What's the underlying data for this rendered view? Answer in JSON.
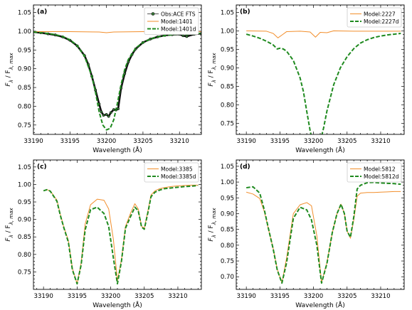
{
  "figure": {
    "xlabel": "Wavelength (Å)",
    "ylabel_main": "F",
    "ylabel_sub1": "λ",
    "ylabel_mid": " / F",
    "ylabel_sub2": "λ, max",
    "colors": {
      "model": "#f28e2b",
      "model_d": "#1f8a1f",
      "obs_fill": "#3a7d3a",
      "obs_edge": "#000000"
    }
  },
  "chart_data": [
    {
      "type": "line",
      "panel": "(a)",
      "xlim": [
        33190,
        33213
      ],
      "ylim": [
        0.725,
        1.07
      ],
      "xticks": [
        33190,
        33195,
        33200,
        33205,
        33210
      ],
      "yticks": [
        0.75,
        0.8,
        0.85,
        0.9,
        0.95,
        1.0,
        1.05
      ],
      "legend": "top-right",
      "series": [
        {
          "name": "Obs:ACE FTS",
          "style": "obs",
          "x": [
            33190,
            33191,
            33192,
            33193,
            33194,
            33195,
            33196,
            33197,
            33197.5,
            33198,
            33198.5,
            33199,
            33199.3,
            33199.6,
            33200,
            33200.3,
            33200.6,
            33201,
            33201.3,
            33201.6,
            33202,
            33202.5,
            33203,
            33203.5,
            33204,
            33205,
            33206,
            33207,
            33208,
            33209,
            33210,
            33210.5,
            33211,
            33212,
            33213
          ],
          "y": [
            0.998,
            0.996,
            0.993,
            0.99,
            0.985,
            0.976,
            0.961,
            0.935,
            0.912,
            0.88,
            0.843,
            0.806,
            0.785,
            0.776,
            0.778,
            0.773,
            0.783,
            0.791,
            0.79,
            0.793,
            0.848,
            0.887,
            0.918,
            0.938,
            0.953,
            0.97,
            0.979,
            0.985,
            0.989,
            0.991,
            0.992,
            0.988,
            0.986,
            0.992,
            0.994
          ]
        },
        {
          "name": "Model:1401",
          "style": "model",
          "x": [
            33190,
            33195,
            33199,
            33200,
            33201,
            33205,
            33210,
            33213
          ],
          "y": [
            0.999,
            0.999,
            0.998,
            0.996,
            0.998,
            0.999,
            0.999,
            0.999
          ]
        },
        {
          "name": "Model:1401d",
          "style": "modeld",
          "x": [
            33190,
            33191,
            33192,
            33193,
            33194,
            33195,
            33196,
            33197,
            33198,
            33198.5,
            33199,
            33199.5,
            33200,
            33200.5,
            33201,
            33201.5,
            33202,
            33202.5,
            33203,
            33204,
            33205,
            33206,
            33207,
            33208,
            33209,
            33210,
            33211,
            33212,
            33213
          ],
          "y": [
            0.998,
            0.996,
            0.994,
            0.991,
            0.986,
            0.977,
            0.962,
            0.933,
            0.88,
            0.837,
            0.785,
            0.75,
            0.737,
            0.741,
            0.764,
            0.808,
            0.858,
            0.898,
            0.925,
            0.955,
            0.97,
            0.979,
            0.985,
            0.988,
            0.991,
            0.993,
            0.991,
            0.993,
            0.995
          ]
        }
      ]
    },
    {
      "type": "line",
      "panel": "(b)",
      "xlim": [
        33188.5,
        33213.5
      ],
      "ylim": [
        0.72,
        1.07
      ],
      "xticks": [
        33190,
        33195,
        33200,
        33205,
        33210
      ],
      "yticks": [
        0.75,
        0.8,
        0.85,
        0.9,
        0.95,
        1.0,
        1.05
      ],
      "legend": "top-right",
      "series": [
        {
          "name": "Model:2227",
          "style": "model",
          "x": [
            33190,
            33193,
            33194,
            33194.7,
            33195.4,
            33196,
            33198,
            33199.5,
            33200.3,
            33201,
            33202,
            33203,
            33206,
            33210,
            33213
          ],
          "y": [
            1.0,
            0.999,
            0.993,
            0.981,
            0.99,
            0.998,
            0.999,
            0.997,
            0.983,
            0.996,
            0.995,
            1.0,
            0.999,
            0.999,
            0.999
          ]
        },
        {
          "name": "Model:2227d",
          "style": "modeld",
          "x": [
            33190,
            33191,
            33192,
            33193,
            33194,
            33194.6,
            33195,
            33195.5,
            33196,
            33197,
            33198,
            33198.5,
            33199,
            33199.5,
            33200,
            33200.5,
            33201,
            33201.5,
            33202,
            33203,
            33204,
            33205,
            33206,
            33207,
            33208,
            33209,
            33210,
            33211,
            33212,
            33213
          ],
          "y": [
            0.991,
            0.986,
            0.98,
            0.972,
            0.962,
            0.951,
            0.953,
            0.951,
            0.945,
            0.92,
            0.873,
            0.836,
            0.782,
            0.73,
            0.69,
            0.688,
            0.7,
            0.737,
            0.783,
            0.854,
            0.9,
            0.93,
            0.952,
            0.967,
            0.976,
            0.982,
            0.986,
            0.989,
            0.991,
            0.993
          ]
        }
      ]
    },
    {
      "type": "line",
      "panel": "(c)",
      "xlim": [
        33188.5,
        33213.5
      ],
      "ylim": [
        0.7,
        1.07
      ],
      "xticks": [
        33190,
        33195,
        33200,
        33205,
        33210
      ],
      "yticks": [
        0.75,
        0.8,
        0.85,
        0.9,
        0.95,
        1.0,
        1.05
      ],
      "legend": "top-right",
      "series": [
        {
          "name": "Model:3385",
          "style": "model",
          "x": [
            33190,
            33190.5,
            33191,
            33192,
            33192.5,
            33193,
            33193.7,
            33194.3,
            33195,
            33195.6,
            33196.2,
            33197,
            33198,
            33199,
            33199.7,
            33200.4,
            33201,
            33201.6,
            33202.2,
            33203,
            33203.6,
            33204.1,
            33204.6,
            33205,
            33205.6,
            33206,
            33206.6,
            33207.3,
            33208,
            33209,
            33210,
            33211,
            33212,
            33213
          ],
          "y": [
            0.982,
            0.985,
            0.982,
            0.955,
            0.915,
            0.88,
            0.84,
            0.76,
            0.716,
            0.775,
            0.887,
            0.942,
            0.958,
            0.955,
            0.93,
            0.843,
            0.725,
            0.785,
            0.88,
            0.92,
            0.945,
            0.93,
            0.88,
            0.875,
            0.93,
            0.97,
            0.982,
            0.988,
            0.991,
            0.994,
            0.996,
            0.997,
            0.998,
            0.998
          ]
        },
        {
          "name": "Model:3385d",
          "style": "modeld",
          "x": [
            33190,
            33190.5,
            33191,
            33192,
            33192.5,
            33193,
            33193.7,
            33194.3,
            33195,
            33195.6,
            33196.2,
            33197,
            33198,
            33199,
            33199.7,
            33200.4,
            33201,
            33201.6,
            33202.2,
            33203,
            33203.6,
            33204.1,
            33204.6,
            33205,
            33205.6,
            33206,
            33206.6,
            33207.3,
            33208,
            33209,
            33210,
            33211,
            33212,
            33213
          ],
          "y": [
            0.982,
            0.985,
            0.981,
            0.952,
            0.912,
            0.878,
            0.835,
            0.756,
            0.716,
            0.77,
            0.87,
            0.928,
            0.935,
            0.917,
            0.88,
            0.79,
            0.716,
            0.78,
            0.875,
            0.91,
            0.935,
            0.925,
            0.878,
            0.872,
            0.925,
            0.965,
            0.978,
            0.984,
            0.988,
            0.99,
            0.992,
            0.994,
            0.995,
            0.997
          ]
        }
      ]
    },
    {
      "type": "line",
      "panel": "(d)",
      "xlim": [
        33188.5,
        33213.5
      ],
      "ylim": [
        0.66,
        1.07
      ],
      "xticks": [
        33190,
        33195,
        33200,
        33205,
        33210
      ],
      "yticks": [
        0.7,
        0.75,
        0.8,
        0.85,
        0.9,
        0.95,
        1.0,
        1.05
      ],
      "legend": "top-right",
      "series": [
        {
          "name": "Model:5812",
          "style": "model",
          "x": [
            33190,
            33191,
            33192,
            33192.7,
            33193.3,
            33194,
            33194.6,
            33195.3,
            33196,
            33197,
            33198,
            33199,
            33199.7,
            33200.5,
            33201.2,
            33202,
            33202.8,
            33203.5,
            33204.1,
            33204.6,
            33205,
            33205.5,
            33206,
            33206.5,
            33207,
            33208,
            33209,
            33210,
            33211,
            33212,
            33213
          ],
          "y": [
            0.968,
            0.962,
            0.948,
            0.905,
            0.85,
            0.79,
            0.725,
            0.681,
            0.76,
            0.9,
            0.928,
            0.935,
            0.925,
            0.83,
            0.682,
            0.745,
            0.84,
            0.9,
            0.93,
            0.9,
            0.845,
            0.822,
            0.88,
            0.955,
            0.965,
            0.967,
            0.967,
            0.968,
            0.969,
            0.97,
            0.97
          ]
        },
        {
          "name": "Model:5812d",
          "style": "modeld",
          "x": [
            33190,
            33191,
            33192,
            33192.7,
            33193.3,
            33194,
            33194.6,
            33195.3,
            33196,
            33197,
            33198,
            33199,
            33199.7,
            33200.5,
            33201.2,
            33202,
            33202.8,
            33203.5,
            33204.1,
            33204.6,
            33205,
            33205.5,
            33206,
            33206.5,
            33207,
            33208,
            33209,
            33210,
            33211,
            33212,
            33213
          ],
          "y": [
            0.982,
            0.985,
            0.965,
            0.91,
            0.852,
            0.788,
            0.722,
            0.68,
            0.745,
            0.885,
            0.92,
            0.912,
            0.88,
            0.8,
            0.68,
            0.742,
            0.84,
            0.9,
            0.93,
            0.9,
            0.845,
            0.825,
            0.89,
            0.978,
            0.99,
            0.998,
            0.999,
            0.997,
            0.996,
            0.995,
            0.993
          ]
        }
      ]
    }
  ]
}
